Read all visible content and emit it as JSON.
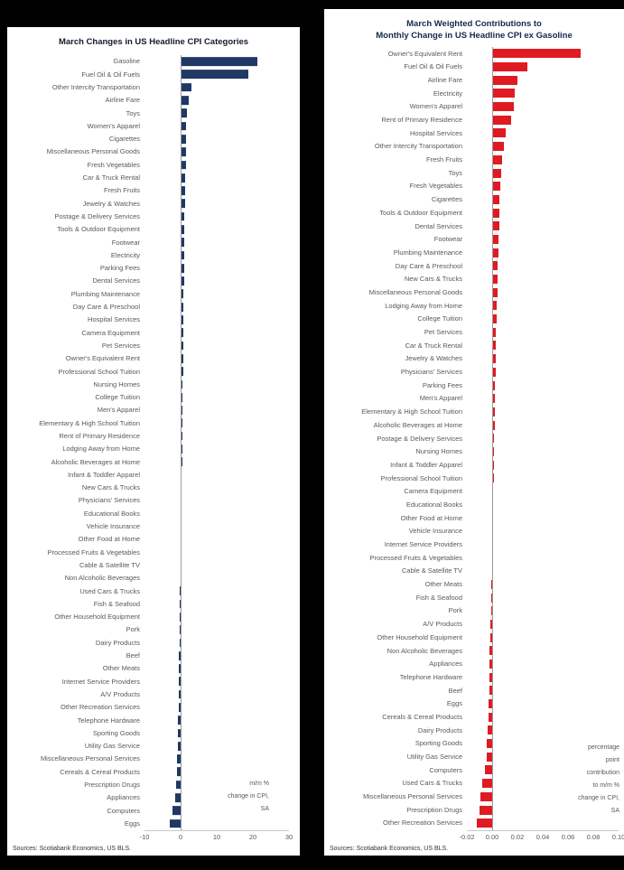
{
  "background_color": "#000000",
  "chart_data": [
    {
      "type": "bar",
      "orientation": "horizontal",
      "title": "March Changes in US Headline CPI Categories",
      "title_lines": [
        "March Changes in US Headline CPI Categories"
      ],
      "note_lines": [
        "m/m %",
        "change in CPI,",
        "SA"
      ],
      "source": "Sources: Scotiabank Economics, US BLS.",
      "bar_color": "#1f3864",
      "xlim": [
        -10,
        30
      ],
      "grid": false,
      "legend": "none",
      "ticks": [
        {
          "value": -10,
          "label": "-10"
        },
        {
          "value": 0,
          "label": "0"
        },
        {
          "value": 10,
          "label": "10"
        },
        {
          "value": 20,
          "label": "20"
        },
        {
          "value": 30,
          "label": "30"
        }
      ],
      "categories": [
        "Gasoline",
        "Fuel Oil & Oil Fuels",
        "Other Intercity Transportation",
        "Airline Fare",
        "Toys",
        "Women's Apparel",
        "Cigarettes",
        "Miscellaneous Personal Goods",
        "Fresh Vegetables",
        "Car & Truck Rental",
        "Fresh Fruits",
        "Jewelry & Watches",
        "Postage & Delivery Services",
        "Tools & Outdoor Equipment",
        "Footwear",
        "Electricity",
        "Parking Fees",
        "Dental Services",
        "Plumbing Maintenance",
        "Day Care & Preschool",
        "Hospital Services",
        "Camera Equipment",
        "Pet Services",
        "Owner's Equivalent Rent",
        "Professional School Tuition",
        "Nursing Homes",
        "College Tuition",
        "Men's Apparel",
        "Elementary & High School Tuition",
        "Rent of Primary Residence",
        "Lodging Away from Home",
        "Alcoholic Beverages at Home",
        "Infant & Toddler Apparel",
        "New Cars & Trucks",
        "Physicians' Services",
        "Educational Books",
        "Vehicle Insurance",
        "Other Food at Home",
        "Processed Fruits & Vegetables",
        "Cable & Satellite TV",
        "Non Alcoholic Beverages",
        "Used Cars & Trucks",
        "Fish & Seafood",
        "Other Household Equipment",
        "Pork",
        "Dairy Products",
        "Beef",
        "Other Meats",
        "Internet Service Providers",
        "A/V Products",
        "Other Recreation Services",
        "Telephone Hardware",
        "Sporting Goods",
        "Utility Gas Service",
        "Miscellaneous Personal Services",
        "Cereals & Cereal Products",
        "Prescription Drugs",
        "Appliances",
        "Computers",
        "Eggs"
      ],
      "values": [
        21.3,
        18.8,
        3.0,
        2.3,
        1.8,
        1.6,
        1.5,
        1.4,
        1.4,
        1.3,
        1.2,
        1.2,
        1.1,
        1.1,
        1.0,
        1.0,
        0.9,
        0.9,
        0.85,
        0.8,
        0.8,
        0.75,
        0.7,
        0.7,
        0.65,
        0.6,
        0.55,
        0.5,
        0.5,
        0.45,
        0.4,
        0.4,
        0.35,
        0.3,
        0.25,
        0.2,
        0.2,
        0.15,
        0.1,
        0.1,
        -0.1,
        -0.15,
        -0.2,
        -0.25,
        -0.3,
        -0.35,
        -0.4,
        -0.45,
        -0.5,
        -0.55,
        -0.6,
        -0.65,
        -0.75,
        -0.85,
        -1.0,
        -1.1,
        -1.3,
        -1.5,
        -2.2,
        -3.0
      ]
    },
    {
      "type": "bar",
      "orientation": "horizontal",
      "title": "March Weighted Contributions to Monthly Change in US Headline CPI ex Gasoline",
      "title_lines": [
        "March Weighted Contributions to",
        "Monthly Change in US Headline CPI ex Gasoline"
      ],
      "note_lines": [
        "percentage",
        "point",
        "contribution",
        "to m/m %",
        "change in CPI,",
        "SA"
      ],
      "source": "Sources: Scotiabank Economics, US BLS.",
      "bar_color": "#e01a22",
      "xlim": [
        -0.02,
        0.1
      ],
      "grid": false,
      "legend": "none",
      "ticks": [
        {
          "value": -0.02,
          "label": "-0.02"
        },
        {
          "value": 0,
          "label": "0.00"
        },
        {
          "value": 0.02,
          "label": "0.02"
        },
        {
          "value": 0.04,
          "label": "0.04"
        },
        {
          "value": 0.06,
          "label": "0.06"
        },
        {
          "value": 0.08,
          "label": "0.08"
        },
        {
          "value": 0.1,
          "label": "0.10"
        }
      ],
      "categories": [
        "Owner's Equivalent Rent",
        "Fuel Oil & Oil Fuels",
        "Airline Fare",
        "Electricity",
        "Women's Apparel",
        "Rent of Primary Residence",
        "Hospital Services",
        "Other Intercity Transportation",
        "Fresh Fruits",
        "Toys",
        "Fresh Vegetables",
        "Cigarettes",
        "Tools & Outdoor Equipment",
        "Dental Services",
        "Footwear",
        "Plumbing Maintenance",
        "Day Care & Preschool",
        "New Cars & Trucks",
        "Miscellaneous Personal Goods",
        "Lodging Away from Home",
        "College Tuition",
        "Pet Services",
        "Car & Truck Rental",
        "Jewelry & Watches",
        "Physicians' Services",
        "Parking Fees",
        "Men's Apparel",
        "Elementary & High School Tuition",
        "Alcoholic Beverages at Home",
        "Postage & Delivery Services",
        "Nursing Homes",
        "Infant & Toddler Apparel",
        "Professional School Tuition",
        "Camera Equipment",
        "Educational Books",
        "Other Food at Home",
        "Vehicle Insurance",
        "Internet Service Providers",
        "Processed Fruits & Vegetables",
        "Cable & Satellite TV",
        "Other Meats",
        "Fish & Seafood",
        "Pork",
        "A/V Products",
        "Other Household Equipment",
        "Non Alcoholic Beverages",
        "Appliances",
        "Telephone Hardware",
        "Beef",
        "Eggs",
        "Cereals & Cereal Products",
        "Dairy Products",
        "Sporting Goods",
        "Utility Gas Service",
        "Computers",
        "Used Cars & Trucks",
        "Miscellaneous Personal Services",
        "Prescription Drugs",
        "Other Recreation Services"
      ],
      "values": [
        0.07,
        0.028,
        0.02,
        0.018,
        0.017,
        0.015,
        0.011,
        0.009,
        0.008,
        0.007,
        0.0065,
        0.006,
        0.006,
        0.0055,
        0.005,
        0.005,
        0.0045,
        0.0045,
        0.004,
        0.0035,
        0.0035,
        0.003,
        0.003,
        0.0028,
        0.0025,
        0.0022,
        0.002,
        0.002,
        0.0018,
        0.0015,
        0.0014,
        0.0012,
        0.0012,
        0.001,
        0.0008,
        0.0008,
        0.0006,
        0.0005,
        0.0004,
        0.0003,
        -0.0006,
        -0.0008,
        -0.001,
        -0.0014,
        -0.0016,
        -0.0018,
        -0.002,
        -0.002,
        -0.0024,
        -0.0028,
        -0.003,
        -0.0035,
        -0.004,
        -0.0045,
        -0.006,
        -0.008,
        -0.0095,
        -0.01,
        -0.012
      ]
    }
  ]
}
